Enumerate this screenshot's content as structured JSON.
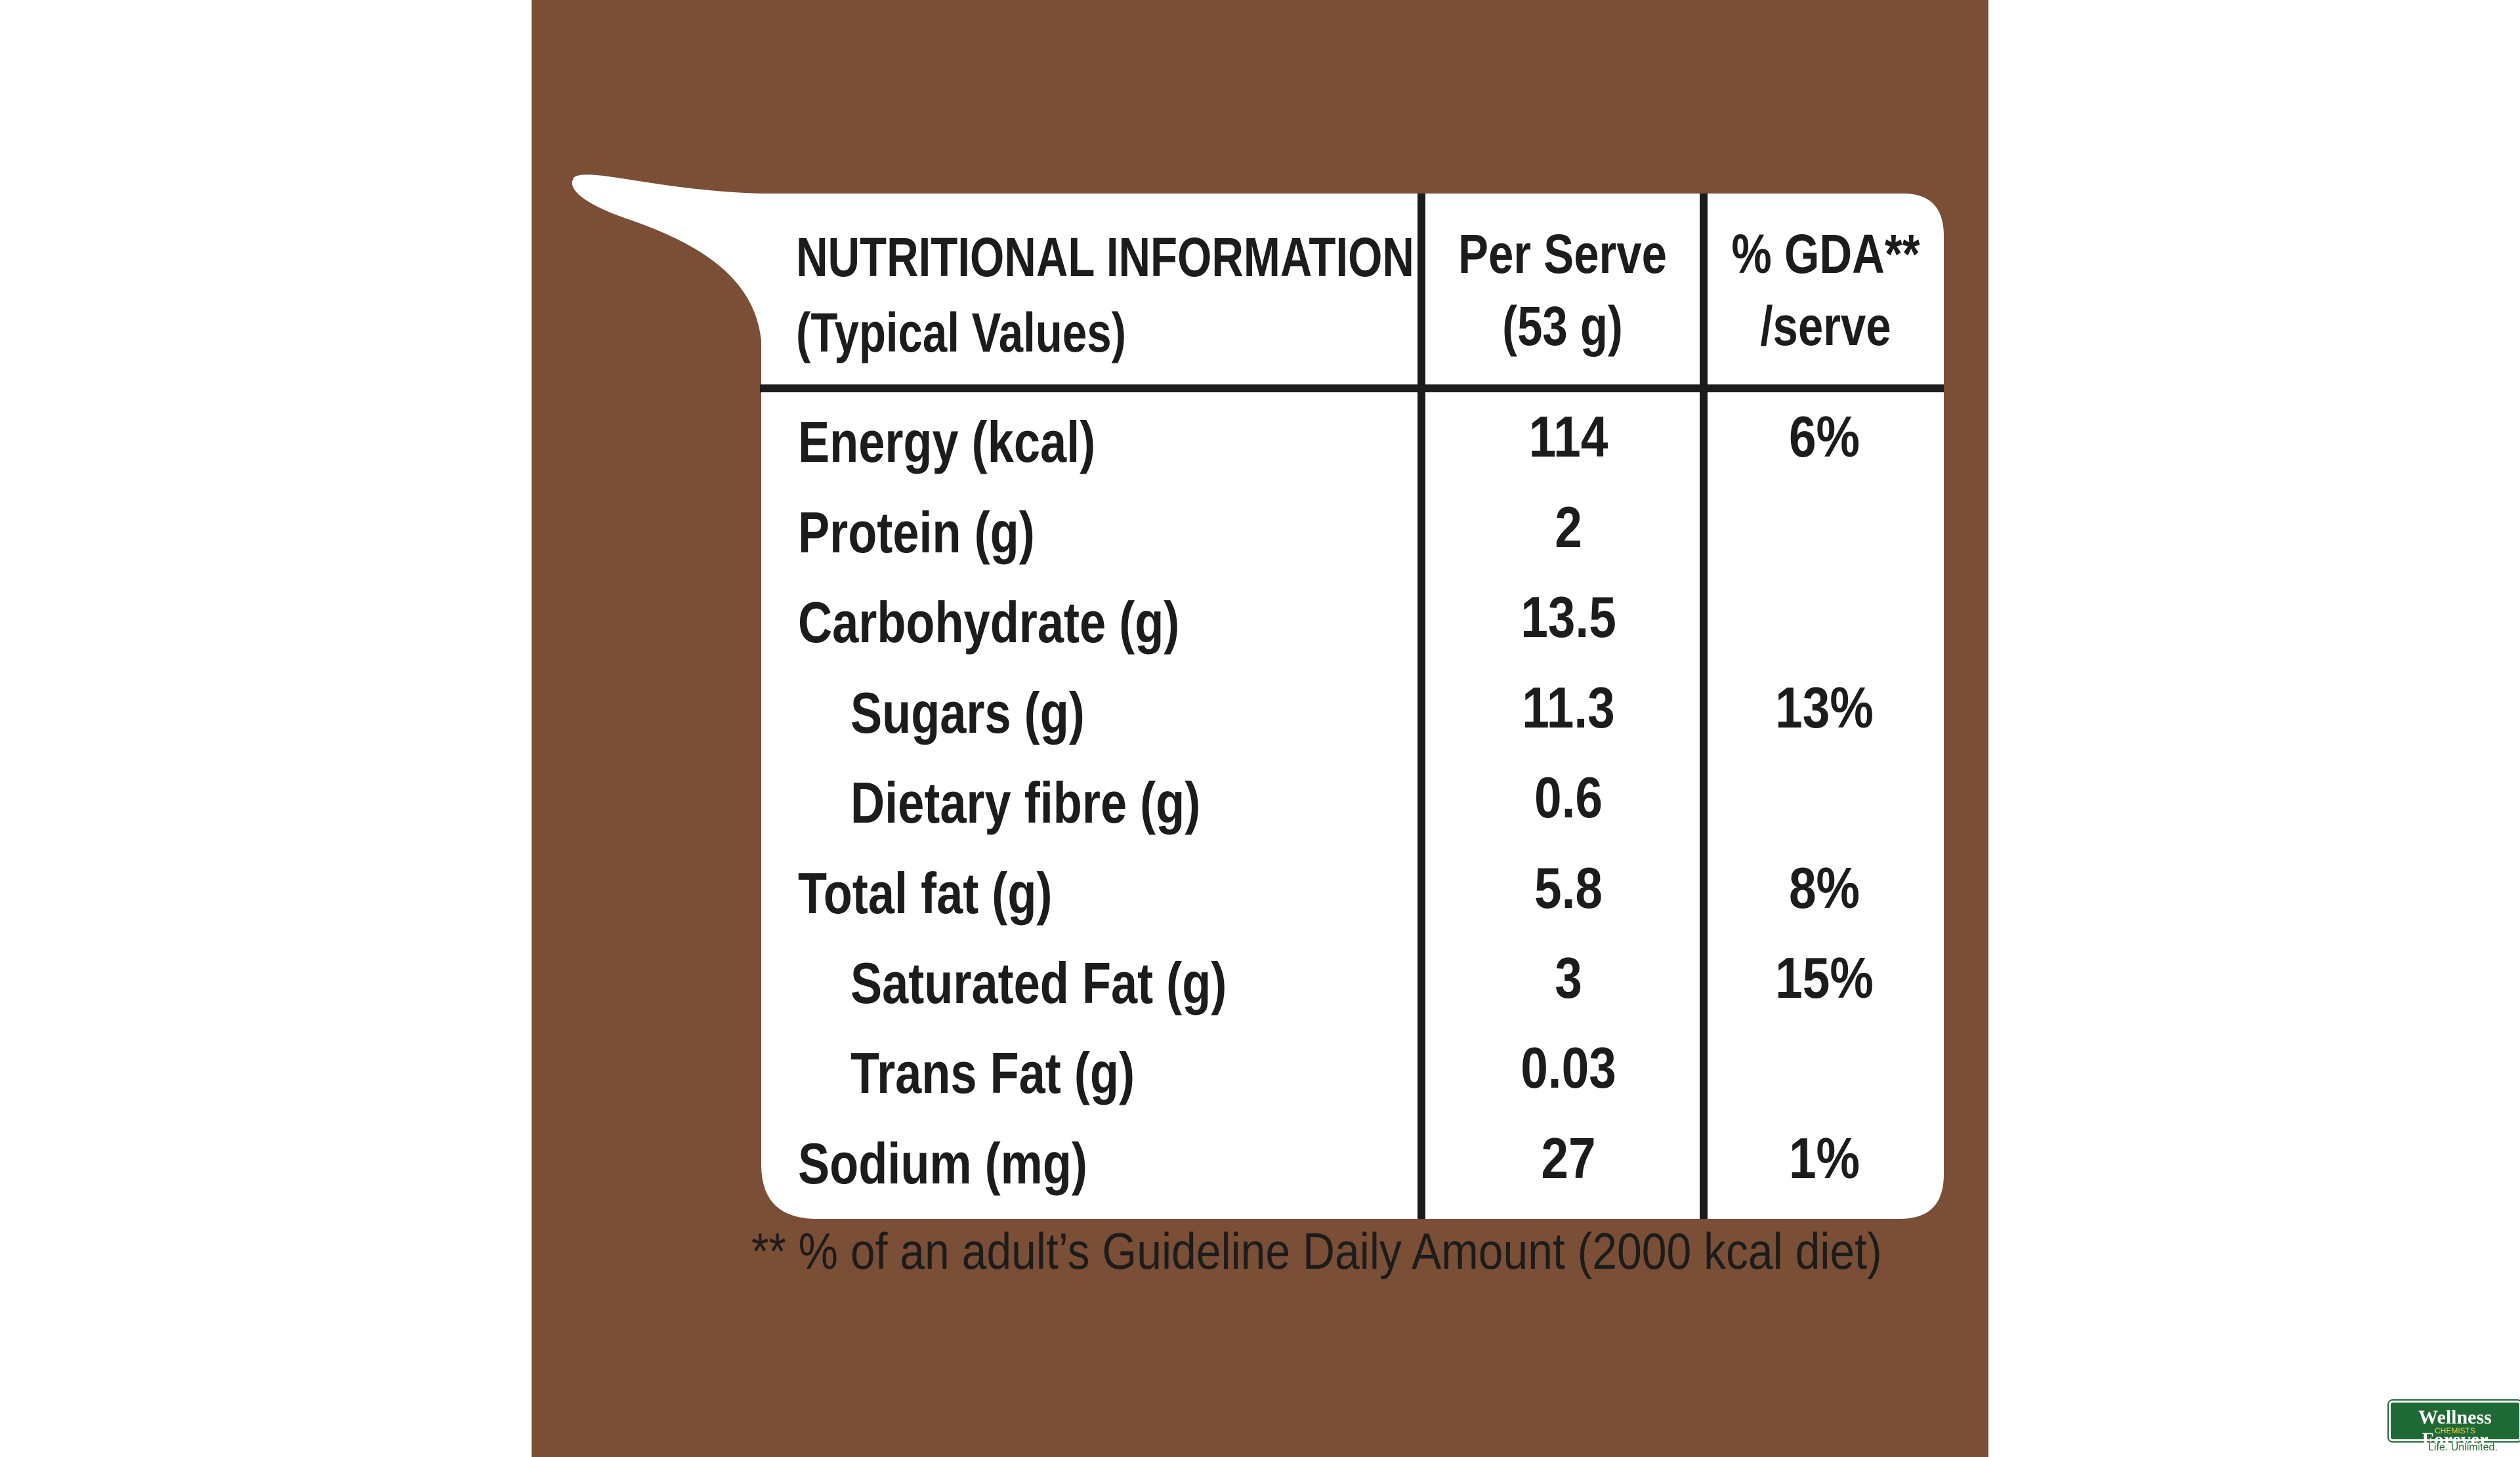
{
  "header": {
    "title_line1": "NUTRITIONAL INFORMATION",
    "title_line2": "(Typical Values)",
    "col2_line1": "Per Serve",
    "col2_line2": "(53 g)",
    "col3_line1": "% GDA**",
    "col3_line2": "/serve"
  },
  "rows": [
    {
      "label": "Energy (kcal)",
      "per_serve": "114",
      "gda": "6%"
    },
    {
      "label": "Protein (g)",
      "per_serve": "2",
      "gda": ""
    },
    {
      "label": "Carbohydrate (g)",
      "per_serve": "13.5",
      "gda": ""
    },
    {
      "label": "Sugars (g)",
      "per_serve": "11.3",
      "gda": "13%"
    },
    {
      "label": "Dietary fibre (g)",
      "per_serve": "0.6",
      "gda": ""
    },
    {
      "label": "Total fat (g)",
      "per_serve": "5.8",
      "gda": "8%"
    },
    {
      "label": "Saturated Fat (g)",
      "per_serve": "3",
      "gda": "15%"
    },
    {
      "label": "Trans Fat (g)",
      "per_serve": "0.03",
      "gda": ""
    },
    {
      "label": "Sodium (mg)",
      "per_serve": "27",
      "gda": "1%"
    }
  ],
  "footnote": "** % of an adult’s Guideline Daily Amount (2000 kcal diet)",
  "watermark": {
    "brand": "Wellness Forever",
    "sub": "CHEMISTS",
    "tagline": "Life. Unlimited."
  },
  "colors": {
    "background": "#7a4f36",
    "label": "#ffffff",
    "ink": "#1c1c1c",
    "brand_green": "#1f6a34"
  }
}
